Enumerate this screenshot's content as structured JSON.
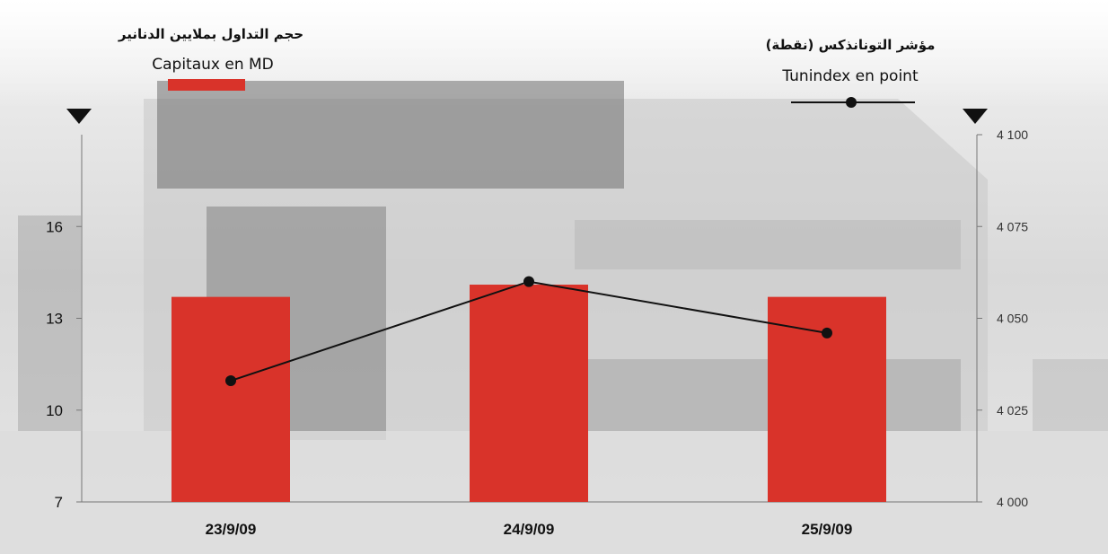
{
  "chart_data": {
    "type": "bar",
    "categories": [
      "23/9/09",
      "24/9/09",
      "25/9/09"
    ],
    "series": [
      {
        "name": "Capitaux en MD",
        "name_ar": "حجم التداول بملايين الدنانير",
        "type": "bar",
        "axis": "left",
        "color": "#d9332a",
        "values": [
          13.7,
          14.1,
          13.7
        ]
      },
      {
        "name": "Tunindex en point",
        "name_ar": "مؤشر التونانذكس (نقطة)",
        "type": "line",
        "axis": "right",
        "color": "#111111",
        "values": [
          4033,
          4060,
          4046
        ]
      }
    ],
    "left_axis": {
      "min": 7,
      "max": 19,
      "ticks": [
        "7",
        "10",
        "13",
        "16"
      ]
    },
    "right_axis": {
      "min": 4000,
      "max": 4100,
      "ticks": [
        "4 000",
        "4 025",
        "4 050",
        "4 075",
        "4 100"
      ]
    },
    "grid": false,
    "legend_position": "top"
  }
}
